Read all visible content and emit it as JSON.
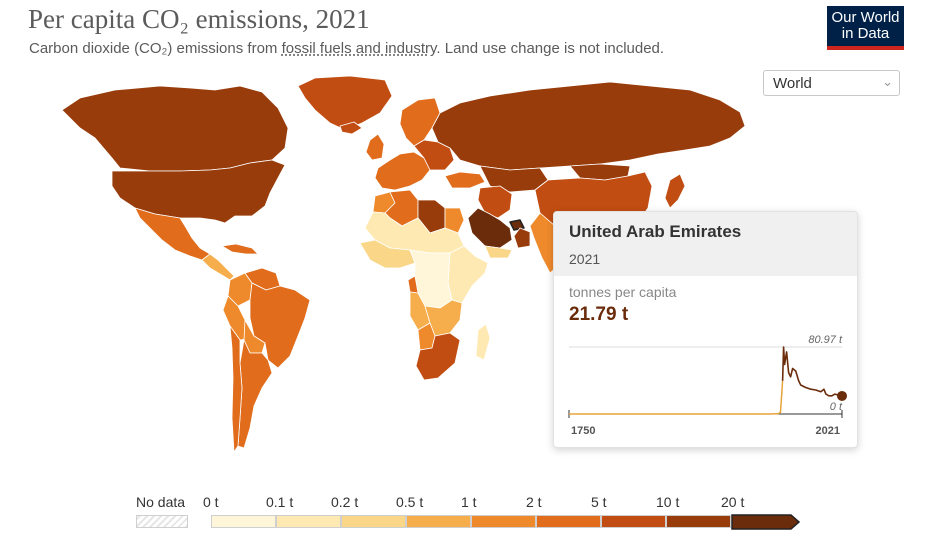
{
  "header": {
    "title": "Per capita CO₂ emissions, 2021",
    "subtitle_pre": "Carbon dioxide (CO₂) emissions from ",
    "subtitle_link": "fossil fuels and industry",
    "subtitle_post": ". Land use change is not included."
  },
  "logo": {
    "line1": "Our World",
    "line2": "in Data"
  },
  "region_select": {
    "value": "World"
  },
  "tooltip": {
    "country": "United Arab Emirates",
    "year": "2021",
    "unit_label": "tonnes per capita",
    "value": "21.79 t",
    "sparkline": {
      "max_label": "80.97 t",
      "min_label": "0 t",
      "start_year": "1750",
      "end_year": "2021",
      "series_start_year": 1950,
      "series": [
        [
          1750,
          0
        ],
        [
          1950,
          0
        ],
        [
          1958,
          0.5
        ],
        [
          1960,
          2
        ],
        [
          1962,
          40
        ],
        [
          1963,
          80.97
        ],
        [
          1964,
          60
        ],
        [
          1966,
          75
        ],
        [
          1968,
          50
        ],
        [
          1970,
          45
        ],
        [
          1972,
          55
        ],
        [
          1975,
          52
        ],
        [
          1978,
          40
        ],
        [
          1980,
          35
        ],
        [
          1985,
          32
        ],
        [
          1990,
          30
        ],
        [
          1995,
          29
        ],
        [
          2000,
          27
        ],
        [
          2003,
          30
        ],
        [
          2005,
          24
        ],
        [
          2008,
          22
        ],
        [
          2011,
          22
        ],
        [
          2014,
          24
        ],
        [
          2017,
          23
        ],
        [
          2019,
          22
        ],
        [
          2021,
          21.79
        ]
      ],
      "line_color": "#6b2c0c",
      "early_color": "#e8a33a"
    }
  },
  "legend": {
    "no_data_label": "No data",
    "bins": [
      {
        "label": "0 t",
        "color": "#fff5d9"
      },
      {
        "label": "0.1 t",
        "color": "#fde9b1"
      },
      {
        "label": "0.2 t",
        "color": "#fad688"
      },
      {
        "label": "0.5 t",
        "color": "#f6ad4c"
      },
      {
        "label": "1 t",
        "color": "#ef8a2c"
      },
      {
        "label": "2 t",
        "color": "#e06c1c"
      },
      {
        "label": "5 t",
        "color": "#c24d12"
      },
      {
        "label": "10 t",
        "color": "#983c0b"
      },
      {
        "label": "20 t",
        "color": "#6b2c0c"
      }
    ]
  },
  "map": {
    "countries": [
      {
        "name": "Canada",
        "color": "#983c0b"
      },
      {
        "name": "United States",
        "color": "#983c0b"
      },
      {
        "name": "Greenland",
        "color": "#c24d12"
      },
      {
        "name": "Mexico",
        "color": "#e06c1c"
      },
      {
        "name": "Central America",
        "color": "#f6ad4c"
      },
      {
        "name": "Caribbean",
        "color": "#e06c1c"
      },
      {
        "name": "Colombia",
        "color": "#ef8a2c"
      },
      {
        "name": "Venezuela",
        "color": "#e06c1c"
      },
      {
        "name": "Brazil",
        "color": "#e06c1c"
      },
      {
        "name": "Peru",
        "color": "#ef8a2c"
      },
      {
        "name": "Bolivia",
        "color": "#ef8a2c"
      },
      {
        "name": "Argentina",
        "color": "#e06c1c"
      },
      {
        "name": "Chile",
        "color": "#e06c1c"
      },
      {
        "name": "Europe West",
        "color": "#e06c1c"
      },
      {
        "name": "Europe East",
        "color": "#c24d12"
      },
      {
        "name": "Scandinavia",
        "color": "#e06c1c"
      },
      {
        "name": "Iceland",
        "color": "#c24d12"
      },
      {
        "name": "UK and Ireland",
        "color": "#e06c1c"
      },
      {
        "name": "Russia",
        "color": "#983c0b"
      },
      {
        "name": "Kazakhstan",
        "color": "#983c0b"
      },
      {
        "name": "Turkey",
        "color": "#e06c1c"
      },
      {
        "name": "Iran",
        "color": "#c24d12"
      },
      {
        "name": "Saudi Arabia",
        "color": "#6b2c0c"
      },
      {
        "name": "United Arab Emirates",
        "color": "#6b2c0c"
      },
      {
        "name": "Oman",
        "color": "#983c0b"
      },
      {
        "name": "Yemen",
        "color": "#fad688"
      },
      {
        "name": "China",
        "color": "#c24d12"
      },
      {
        "name": "Mongolia",
        "color": "#983c0b"
      },
      {
        "name": "Japan",
        "color": "#c24d12"
      },
      {
        "name": "India",
        "color": "#ef8a2c"
      },
      {
        "name": "Algeria",
        "color": "#e06c1c"
      },
      {
        "name": "Libya",
        "color": "#983c0b"
      },
      {
        "name": "Morocco",
        "color": "#ef8a2c"
      },
      {
        "name": "Egypt",
        "color": "#ef8a2c"
      },
      {
        "name": "Sahel",
        "color": "#fde9b1"
      },
      {
        "name": "West Africa",
        "color": "#fad688"
      },
      {
        "name": "Central Africa",
        "color": "#fff5d9"
      },
      {
        "name": "Gabon",
        "color": "#e06c1c"
      },
      {
        "name": "East Africa",
        "color": "#fde9b1"
      },
      {
        "name": "Angola",
        "color": "#f6ad4c"
      },
      {
        "name": "Southern Africa",
        "color": "#f6ad4c"
      },
      {
        "name": "Botswana",
        "color": "#ef8a2c"
      },
      {
        "name": "South Africa",
        "color": "#c24d12"
      },
      {
        "name": "Madagascar",
        "color": "#fde9b1"
      }
    ]
  }
}
